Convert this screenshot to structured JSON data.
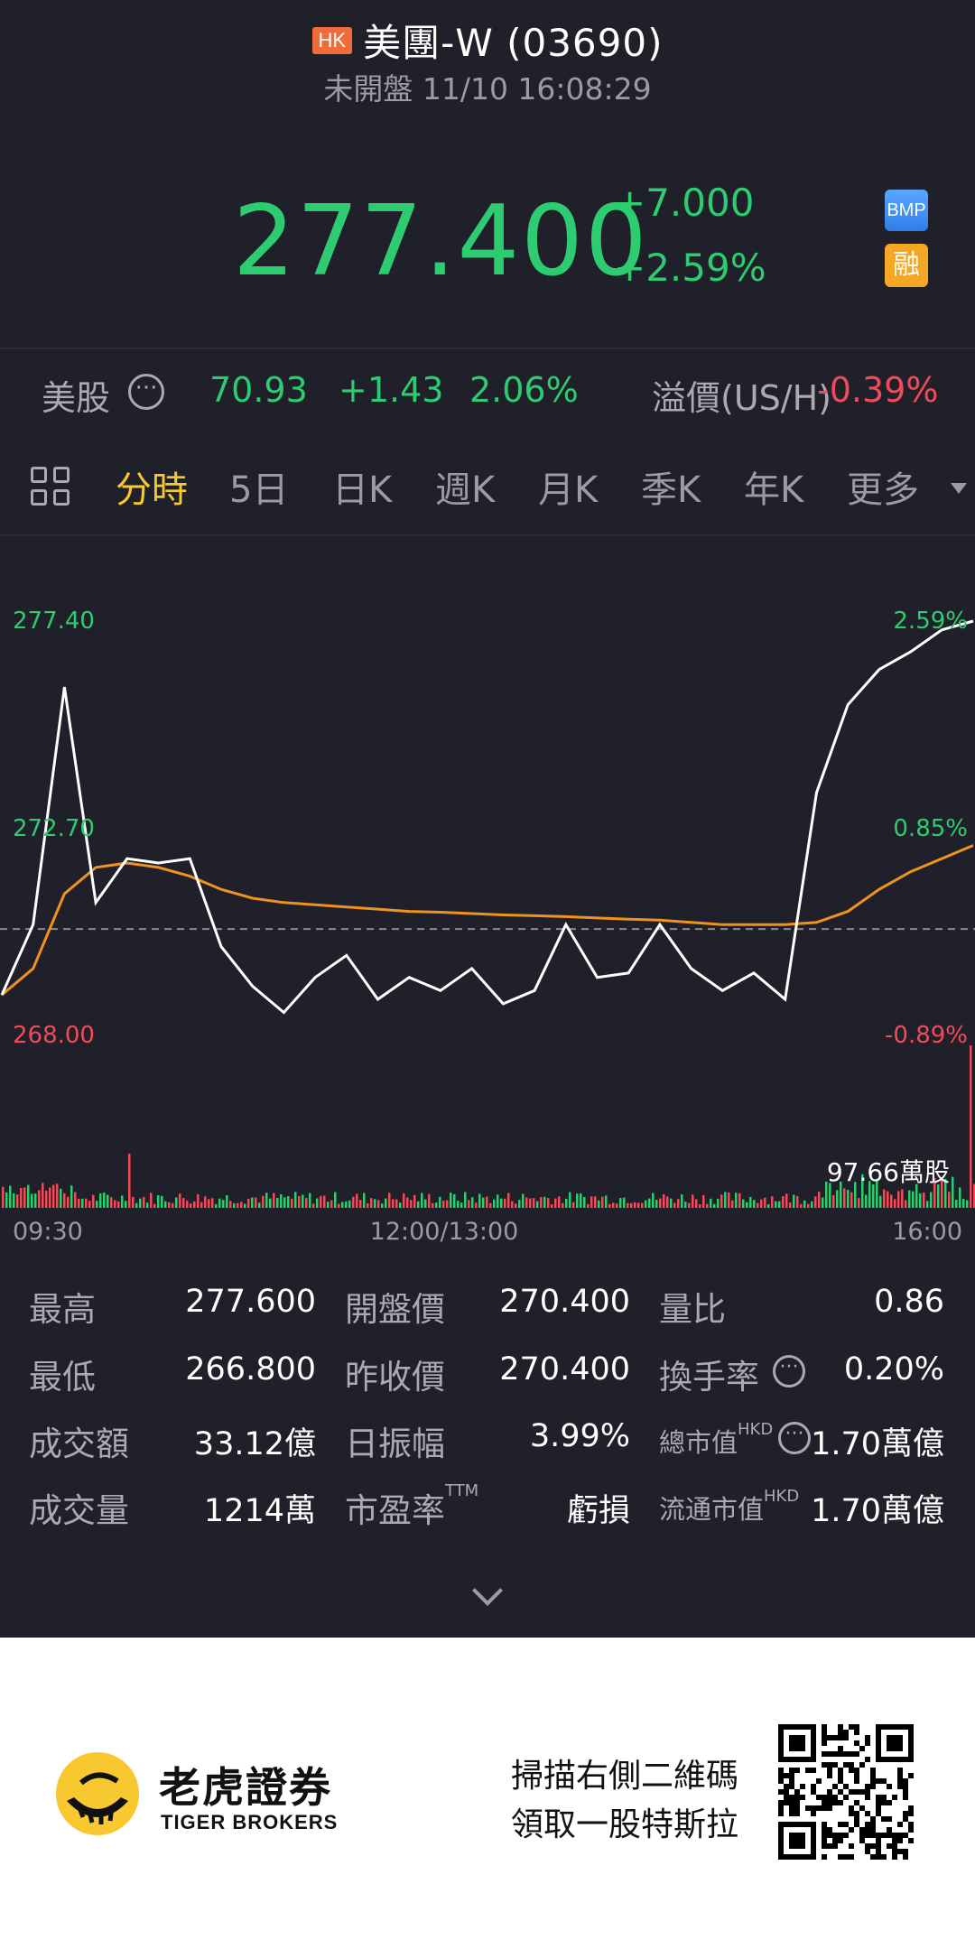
{
  "header": {
    "market_badge": "HK",
    "stock_name": "美團-W (03690)",
    "status": "未開盤 11/10 16:08:29"
  },
  "quote": {
    "price": "277.400",
    "change": "+7.000",
    "change_pct": "+2.59%",
    "badge_bmp": "BMP",
    "badge_margin": "融"
  },
  "us_row": {
    "label": "美股",
    "price": "70.93",
    "change": "+1.43",
    "change_pct": "2.06%",
    "premium_label": "溢價(US/H)",
    "premium_value": "-0.39%"
  },
  "tabs": [
    "分時",
    "5日",
    "日K",
    "週K",
    "月K",
    "季K",
    "年K",
    "更多"
  ],
  "active_tab": "分時",
  "chart_data": {
    "type": "line",
    "y_labels_left": [
      "277.40",
      "272.70",
      "268.00"
    ],
    "y_labels_right": [
      "2.59%",
      "0.85%",
      "-0.89%"
    ],
    "x_labels": [
      "09:30",
      "12:00/13:00",
      "16:00"
    ],
    "volume_label": "97.66萬股",
    "ylim": [
      268.0,
      277.4
    ],
    "prev_close": 270.4,
    "series": [
      {
        "values": [
          268.9,
          270.5,
          275.9,
          271.0,
          272.0,
          271.9,
          272.0,
          270.0,
          269.1,
          268.5,
          269.3,
          269.8,
          268.8,
          269.3,
          269.0,
          269.5,
          268.7,
          269.0,
          270.5,
          269.3,
          269.4,
          270.5,
          269.5,
          269.0,
          269.4,
          268.8,
          273.5,
          275.5,
          276.3,
          276.7,
          277.2,
          277.4
        ]
      },
      {
        "values": [
          268.9,
          269.5,
          271.2,
          271.8,
          271.9,
          271.8,
          271.6,
          271.3,
          271.1,
          271.0,
          270.95,
          270.9,
          270.85,
          270.8,
          270.78,
          270.75,
          270.72,
          270.7,
          270.68,
          270.65,
          270.62,
          270.6,
          270.55,
          270.5,
          270.5,
          270.5,
          270.55,
          270.8,
          271.3,
          271.7,
          272.0,
          272.3
        ]
      }
    ]
  },
  "stats": {
    "high_label": "最高",
    "high": "277.600",
    "low_label": "最低",
    "low": "266.800",
    "turnover_label": "成交額",
    "turnover": "33.12億",
    "volume_label": "成交量",
    "volume": "1214萬",
    "open_label": "開盤價",
    "open": "270.400",
    "prev_close_label": "昨收價",
    "prev_close": "270.400",
    "amplitude_label": "日振幅",
    "amplitude": "3.99%",
    "pe_label": "市盈率",
    "pe_sup": "TTM",
    "pe": "虧損",
    "vol_ratio_label": "量比",
    "vol_ratio": "0.86",
    "turnover_rate_label": "換手率",
    "turnover_rate": "0.20%",
    "mkt_cap_label": "總市值",
    "mkt_cap_sup": "HKD",
    "mkt_cap": "1.70萬億",
    "float_cap_label": "流通市值",
    "float_cap_sup": "HKD",
    "float_cap": "1.70萬億"
  },
  "footer": {
    "brand_cn": "老虎證券",
    "brand_en": "TIGER BROKERS",
    "scan_line1": "掃描右側二維碼",
    "scan_line2": "領取一股特斯拉"
  },
  "colors": {
    "up": "#2ecc71",
    "down": "#ef4b5b",
    "accent": "#f8c830",
    "avg_line": "#f0921e"
  }
}
